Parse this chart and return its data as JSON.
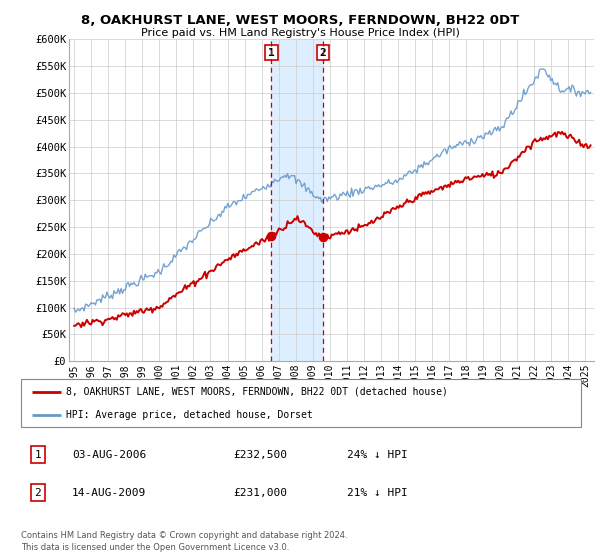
{
  "title": "8, OAKHURST LANE, WEST MOORS, FERNDOWN, BH22 0DT",
  "subtitle": "Price paid vs. HM Land Registry's House Price Index (HPI)",
  "ylim": [
    0,
    600000
  ],
  "yticks": [
    0,
    50000,
    100000,
    150000,
    200000,
    250000,
    300000,
    350000,
    400000,
    450000,
    500000,
    550000,
    600000
  ],
  "ytick_labels": [
    "£0",
    "£50K",
    "£100K",
    "£150K",
    "£200K",
    "£250K",
    "£300K",
    "£350K",
    "£400K",
    "£450K",
    "£500K",
    "£550K",
    "£600K"
  ],
  "xlim_start": 1994.7,
  "xlim_end": 2025.5,
  "xtick_years": [
    1995,
    1996,
    1997,
    1998,
    1999,
    2000,
    2001,
    2002,
    2003,
    2004,
    2005,
    2006,
    2007,
    2008,
    2009,
    2010,
    2011,
    2012,
    2013,
    2014,
    2015,
    2016,
    2017,
    2018,
    2019,
    2020,
    2021,
    2022,
    2023,
    2024,
    2025
  ],
  "event1_x": 2006.58,
  "event1_label": "1",
  "event1_price": 232500,
  "event1_date": "03-AUG-2006",
  "event1_pct": "24% ↓ HPI",
  "event2_x": 2009.61,
  "event2_label": "2",
  "event2_price": 231000,
  "event2_date": "14-AUG-2009",
  "event2_pct": "21% ↓ HPI",
  "legend_line1": "8, OAKHURST LANE, WEST MOORS, FERNDOWN, BH22 0DT (detached house)",
  "legend_line2": "HPI: Average price, detached house, Dorset",
  "footer1": "Contains HM Land Registry data © Crown copyright and database right 2024.",
  "footer2": "This data is licensed under the Open Government Licence v3.0.",
  "red_color": "#cc0000",
  "blue_color": "#6699cc",
  "shading_color": "#ddeeff",
  "background_color": "#ffffff",
  "grid_color": "#cccccc"
}
